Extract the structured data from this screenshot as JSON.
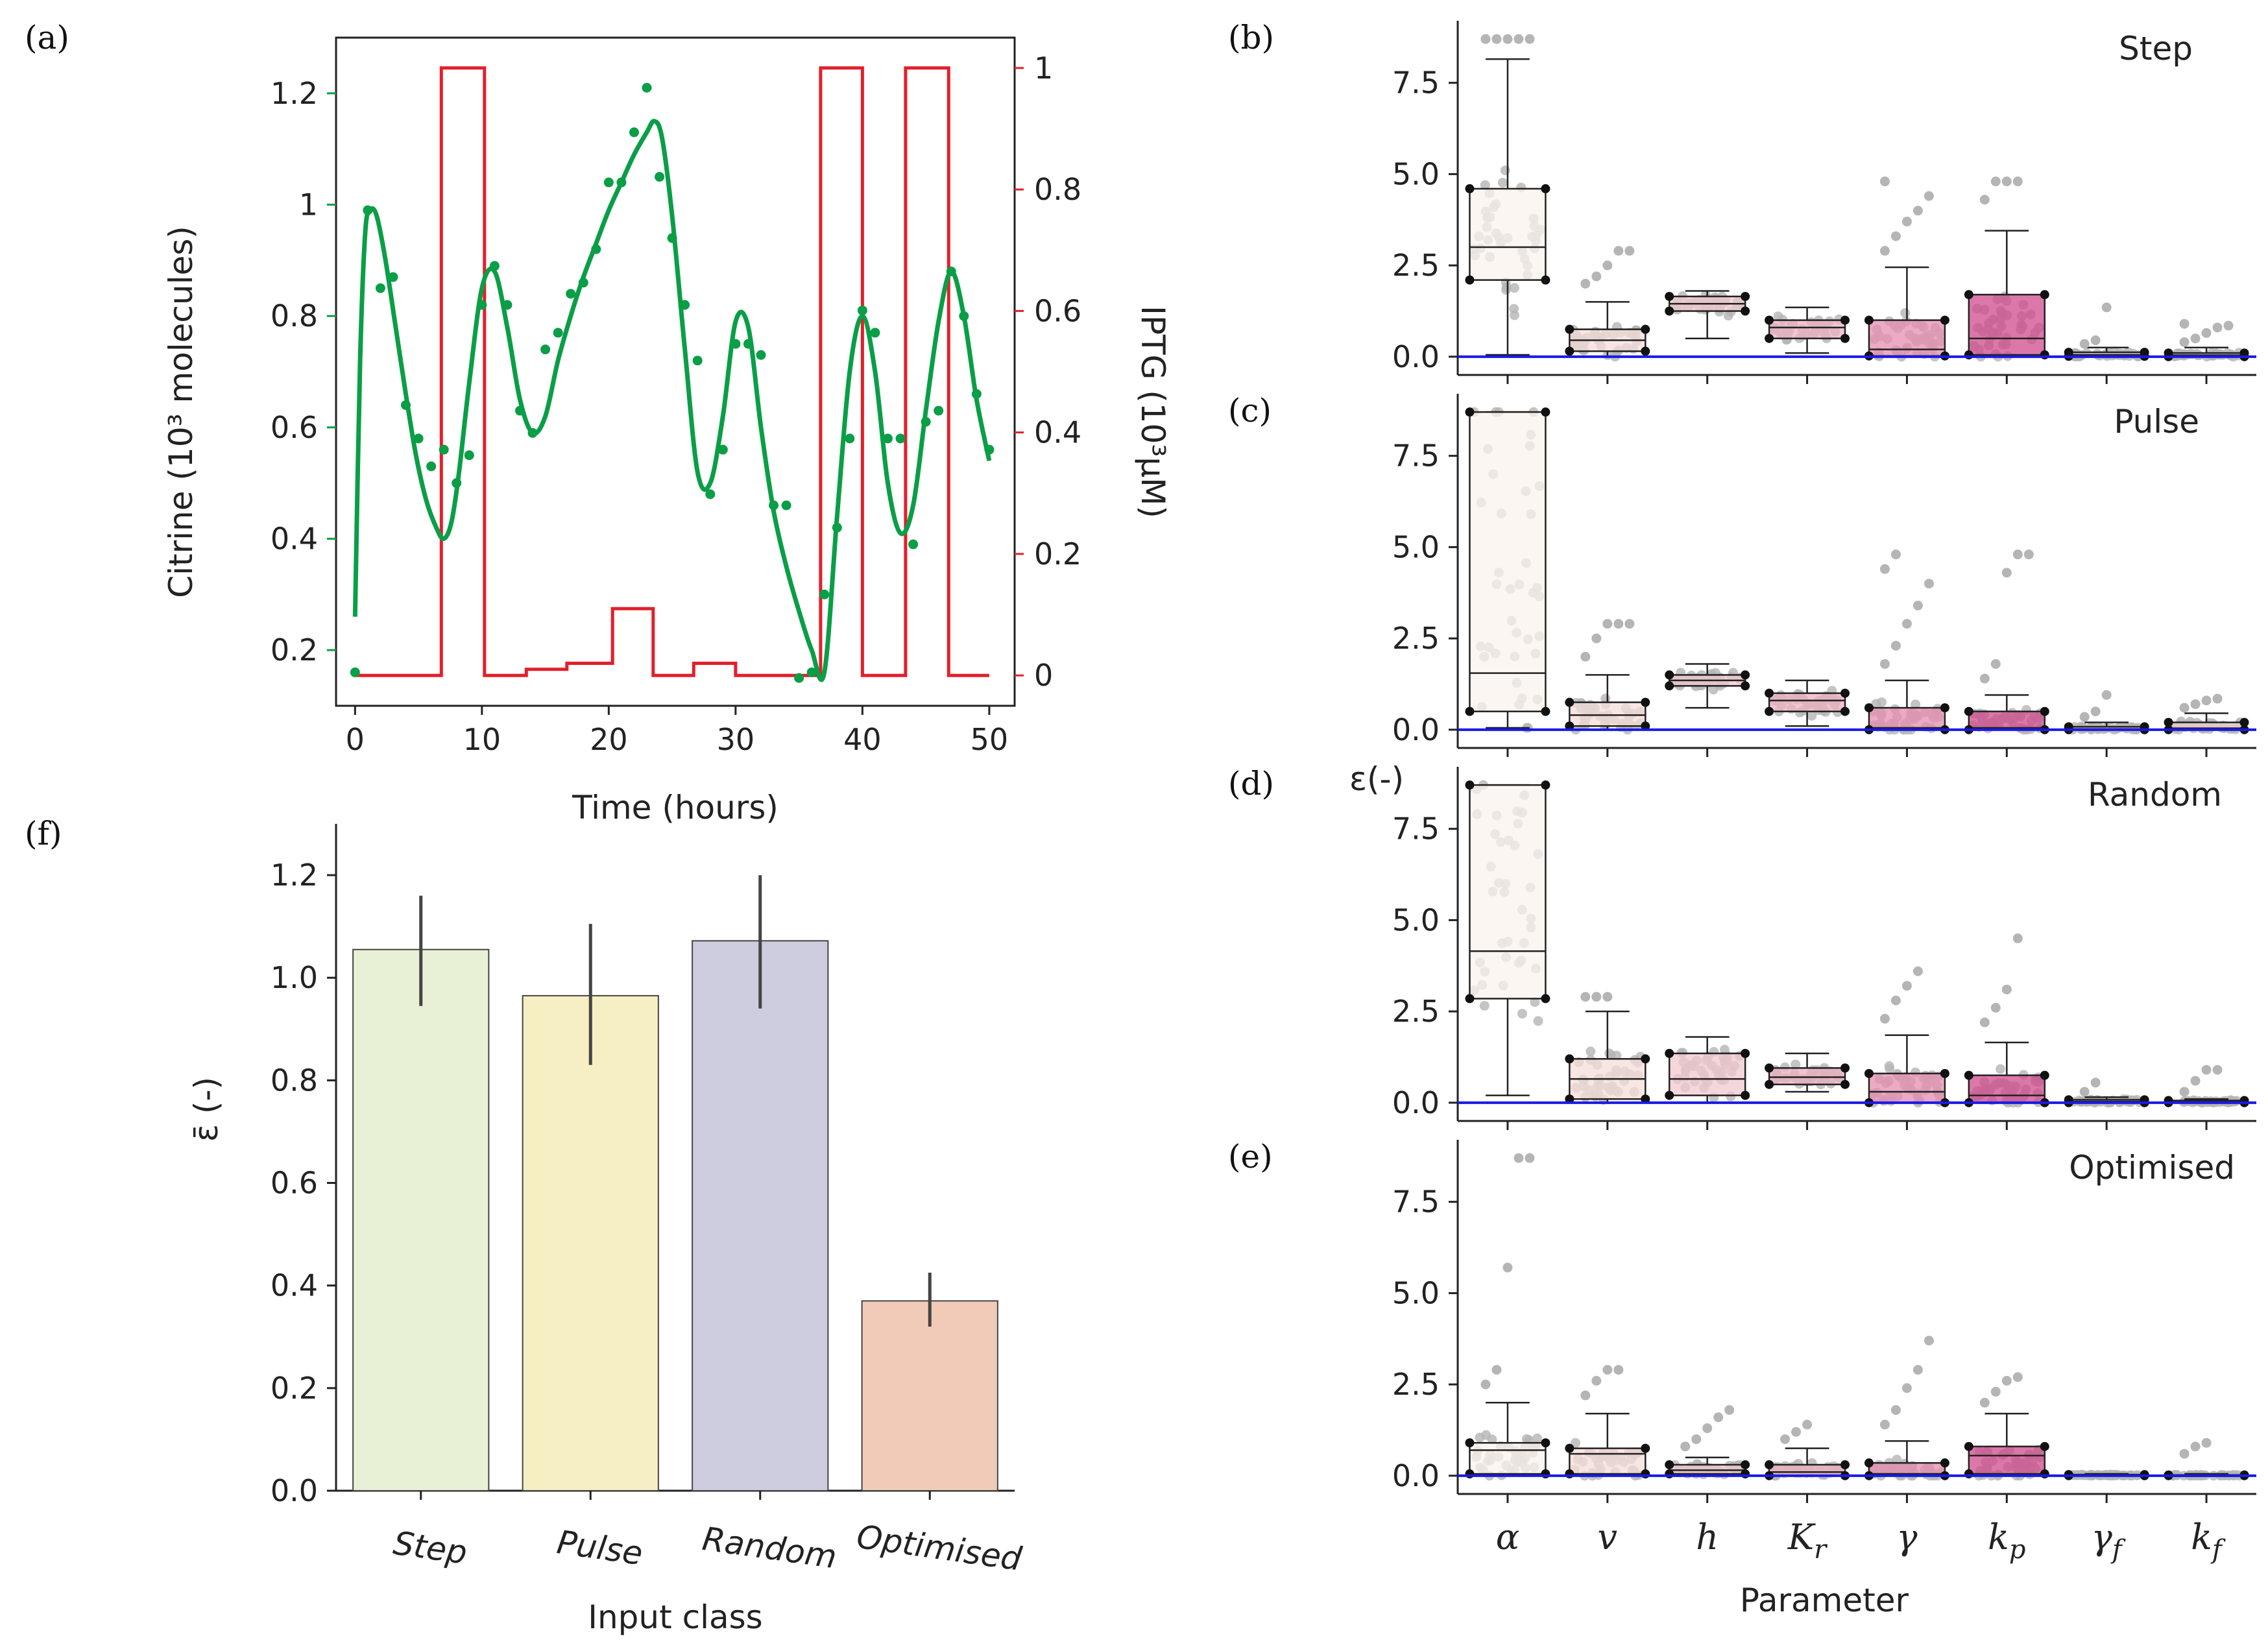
{
  "panel_letters": {
    "a": "(a)",
    "b": "(b)",
    "c": "(c)",
    "d": "(d)",
    "e": "(e)",
    "f": "(f)"
  },
  "colors": {
    "green": "#0a9e47",
    "red": "#e2202a",
    "blue": "#1a1ae6",
    "points": "#b5b5b5",
    "bar_step": "#e8f1d6",
    "bar_pulse": "#f6efc3",
    "bar_random": "#cdcddf",
    "bar_optimised": "#f2cbb8",
    "box_fills": [
      "#fbf3ee",
      "#f6ddd9",
      "#f2c9cf",
      "#eeb3c2",
      "#e68eb0",
      "#cf4a8c",
      "#f4d8e0",
      "#f1cdd8"
    ]
  },
  "chart_data": [
    {
      "id": "a",
      "type": "line",
      "xlabel": "Time (hours)",
      "ylabel": "Citrine (10³ molecules)",
      "y2label": "IPTG (10³μM)",
      "xlim": [
        -1.5,
        52
      ],
      "ylim": [
        0.1,
        1.3
      ],
      "y2lim": [
        -0.05,
        1.05
      ],
      "xticks": [
        0,
        10,
        20,
        30,
        40,
        50
      ],
      "xtick_labels": [
        "0",
        "10",
        "20",
        "30",
        "40",
        "50"
      ],
      "yticks": [
        0.2,
        0.4,
        0.6,
        0.8,
        1.0,
        1.2
      ],
      "ytick_labels": [
        "0.2",
        "0.4",
        "0.6",
        "0.8",
        "1",
        "1.2"
      ],
      "y2ticks": [
        0,
        0.2,
        0.4,
        0.6,
        0.8,
        1.0
      ],
      "y2tick_labels": [
        "0",
        "0.2",
        "0.4",
        "0.6",
        "0.8",
        "1"
      ],
      "model_fit": {
        "x": [
          0,
          0.4,
          0.8,
          1.2,
          1.7,
          2.4,
          3.2,
          4.0,
          4.8,
          5.6,
          6.4,
          7.0,
          7.6,
          8.2,
          9.0,
          10.0,
          11.0,
          12.0,
          13.0,
          14.0,
          15.0,
          16.0,
          17.0,
          18.0,
          19.0,
          20.0,
          21.0,
          22.0,
          23.0,
          23.6,
          24.2,
          25.0,
          26.0,
          27.0,
          28.0,
          29.0,
          30.0,
          31.0,
          32.0,
          33.0,
          34.0,
          35.0,
          36.0,
          37.0,
          38.0,
          39.0,
          40.0,
          41.0,
          42.0,
          43.0,
          44.0,
          45.0,
          46.0,
          47.0,
          48.0,
          49.0,
          50.0
        ],
        "y": [
          0.26,
          0.72,
          0.95,
          0.99,
          0.98,
          0.9,
          0.78,
          0.66,
          0.55,
          0.47,
          0.42,
          0.4,
          0.43,
          0.52,
          0.68,
          0.85,
          0.88,
          0.78,
          0.65,
          0.59,
          0.62,
          0.72,
          0.8,
          0.87,
          0.93,
          0.99,
          1.04,
          1.09,
          1.13,
          1.15,
          1.12,
          0.98,
          0.74,
          0.52,
          0.5,
          0.62,
          0.79,
          0.78,
          0.6,
          0.45,
          0.35,
          0.27,
          0.2,
          0.16,
          0.44,
          0.7,
          0.8,
          0.7,
          0.5,
          0.41,
          0.46,
          0.63,
          0.79,
          0.88,
          0.8,
          0.65,
          0.54
        ]
      },
      "measured": {
        "x": [
          0,
          1,
          2,
          3,
          4,
          5,
          6,
          7,
          8,
          9,
          10,
          11,
          12,
          13,
          14,
          15,
          16,
          17,
          18,
          19,
          20,
          21,
          22,
          23,
          24,
          25,
          26,
          27,
          28,
          29,
          30,
          31,
          32,
          33,
          34,
          35,
          36,
          37,
          38,
          39,
          40,
          41,
          42,
          43,
          44,
          45,
          46,
          47,
          48,
          49,
          50
        ],
        "y": [
          0.16,
          0.99,
          0.85,
          0.87,
          0.64,
          0.58,
          0.53,
          0.56,
          0.5,
          0.55,
          0.82,
          0.89,
          0.82,
          0.63,
          0.59,
          0.74,
          0.77,
          0.84,
          0.86,
          0.92,
          1.04,
          1.04,
          1.13,
          1.21,
          1.05,
          0.94,
          0.82,
          0.72,
          0.48,
          0.56,
          0.75,
          0.75,
          0.73,
          0.46,
          0.46,
          0.15,
          0.16,
          0.3,
          0.42,
          0.58,
          0.81,
          0.77,
          0.58,
          0.58,
          0.39,
          0.61,
          0.63,
          0.88,
          0.8,
          0.66,
          0.56
        ]
      },
      "iptg": {
        "x": [
          0,
          6.8,
          6.8,
          10.2,
          10.2,
          13.5,
          13.5,
          16.7,
          16.7,
          20.3,
          20.3,
          23.5,
          23.5,
          26.7,
          26.7,
          30,
          30,
          36.7,
          36.7,
          40,
          40,
          43.4,
          43.4,
          46.8,
          46.8,
          50
        ],
        "y": [
          0,
          0,
          1,
          1,
          0,
          0,
          0.01,
          0.01,
          0.02,
          0.02,
          0.11,
          0.11,
          0,
          0,
          0.02,
          0.02,
          0,
          0,
          1,
          1,
          0,
          0,
          1,
          1,
          0,
          0
        ]
      }
    },
    {
      "id": "box_panels",
      "type": "box",
      "categories": [
        "α",
        "v",
        "h",
        "Kr",
        "γ",
        "kp",
        "γf",
        "kf"
      ],
      "category_labels": [
        {
          "base": "α",
          "sub": ""
        },
        {
          "base": "v",
          "sub": ""
        },
        {
          "base": "h",
          "sub": ""
        },
        {
          "base": "K",
          "sub": "r"
        },
        {
          "base": "γ",
          "sub": ""
        },
        {
          "base": "k",
          "sub": "p"
        },
        {
          "base": "γ",
          "sub": "f"
        },
        {
          "base": "k",
          "sub": "f"
        }
      ],
      "xlabel": "Parameter",
      "ylabel": "ε(-)",
      "ylim": [
        -0.5,
        9.2
      ],
      "yticks": [
        0,
        2.5,
        5.0,
        7.5
      ],
      "ytick_labels": [
        "0.0",
        "2.5",
        "5.0",
        "7.5"
      ],
      "reference_line": 0,
      "panels": [
        {
          "id": "b",
          "title": "Step",
          "boxes": [
            {
              "wlo": 0.05,
              "q1": 2.1,
              "med": 3.0,
              "q3": 4.6,
              "whi": 8.15,
              "fliers": [
                8.7,
                8.7,
                8.7,
                8.7,
                8.7,
                8.7
              ]
            },
            {
              "wlo": 0.0,
              "q1": 0.15,
              "med": 0.45,
              "q3": 0.75,
              "whi": 1.5,
              "fliers": [
                2.0,
                2.2,
                2.5,
                2.9,
                2.9
              ]
            },
            {
              "wlo": 0.5,
              "q1": 1.25,
              "med": 1.45,
              "q3": 1.65,
              "whi": 1.8,
              "fliers": []
            },
            {
              "wlo": 0.1,
              "q1": 0.5,
              "med": 0.8,
              "q3": 1.0,
              "whi": 1.35,
              "fliers": []
            },
            {
              "wlo": 0.0,
              "q1": 0.02,
              "med": 0.2,
              "q3": 1.0,
              "whi": 2.45,
              "fliers": [
                2.9,
                3.3,
                3.7,
                4.0,
                4.4,
                4.8
              ]
            },
            {
              "wlo": 0.0,
              "q1": 0.05,
              "med": 0.5,
              "q3": 1.7,
              "whi": 3.45,
              "fliers": [
                4.3,
                4.8,
                4.8,
                4.8
              ]
            },
            {
              "wlo": 0.0,
              "q1": 0.01,
              "med": 0.05,
              "q3": 0.12,
              "whi": 0.25,
              "fliers": [
                0.35,
                0.45,
                1.35
              ]
            },
            {
              "wlo": 0.0,
              "q1": 0.0,
              "med": 0.04,
              "q3": 0.1,
              "whi": 0.25,
              "fliers": [
                0.4,
                0.5,
                0.65,
                0.8,
                0.85,
                0.9
              ]
            }
          ]
        },
        {
          "id": "c",
          "title": "Pulse",
          "boxes": [
            {
              "wlo": 0.05,
              "q1": 0.5,
              "med": 1.55,
              "q3": 8.7,
              "whi": 8.7,
              "fliers": []
            },
            {
              "wlo": 0.0,
              "q1": 0.1,
              "med": 0.4,
              "q3": 0.75,
              "whi": 1.5,
              "fliers": [
                2.0,
                2.5,
                2.9,
                2.9,
                2.9
              ]
            },
            {
              "wlo": 0.6,
              "q1": 1.2,
              "med": 1.35,
              "q3": 1.5,
              "whi": 1.8,
              "fliers": []
            },
            {
              "wlo": 0.1,
              "q1": 0.5,
              "med": 0.8,
              "q3": 1.0,
              "whi": 1.35,
              "fliers": []
            },
            {
              "wlo": 0.0,
              "q1": 0.0,
              "med": 0.05,
              "q3": 0.6,
              "whi": 1.35,
              "fliers": [
                1.8,
                2.3,
                2.9,
                3.4,
                4.0,
                4.4,
                4.8
              ]
            },
            {
              "wlo": 0.0,
              "q1": 0.0,
              "med": 0.05,
              "q3": 0.5,
              "whi": 0.95,
              "fliers": [
                1.4,
                1.8,
                4.3,
                4.8,
                4.8
              ]
            },
            {
              "wlo": 0.0,
              "q1": 0.0,
              "med": 0.02,
              "q3": 0.08,
              "whi": 0.2,
              "fliers": [
                0.35,
                0.5,
                0.95
              ]
            },
            {
              "wlo": 0.0,
              "q1": 0.0,
              "med": 0.04,
              "q3": 0.2,
              "whi": 0.45,
              "fliers": [
                0.6,
                0.7,
                0.8,
                0.85
              ]
            }
          ]
        },
        {
          "id": "d",
          "title": "Random",
          "boxes": [
            {
              "wlo": 0.2,
              "q1": 2.85,
              "med": 4.15,
              "q3": 8.7,
              "whi": 8.7,
              "fliers": []
            },
            {
              "wlo": 0.0,
              "q1": 0.1,
              "med": 0.65,
              "q3": 1.2,
              "whi": 2.5,
              "fliers": [
                2.9,
                2.9,
                2.9
              ]
            },
            {
              "wlo": 0.0,
              "q1": 0.2,
              "med": 0.65,
              "q3": 1.35,
              "whi": 1.8,
              "fliers": []
            },
            {
              "wlo": 0.3,
              "q1": 0.5,
              "med": 0.7,
              "q3": 0.95,
              "whi": 1.35,
              "fliers": []
            },
            {
              "wlo": 0.0,
              "q1": 0.0,
              "med": 0.3,
              "q3": 0.8,
              "whi": 1.85,
              "fliers": [
                2.3,
                2.8,
                3.2,
                3.6
              ]
            },
            {
              "wlo": 0.0,
              "q1": 0.0,
              "med": 0.2,
              "q3": 0.75,
              "whi": 1.65,
              "fliers": [
                2.2,
                2.6,
                3.1,
                4.5
              ]
            },
            {
              "wlo": 0.0,
              "q1": 0.0,
              "med": 0.03,
              "q3": 0.08,
              "whi": 0.15,
              "fliers": [
                0.3,
                0.55
              ]
            },
            {
              "wlo": 0.0,
              "q1": 0.0,
              "med": 0.02,
              "q3": 0.06,
              "whi": 0.1,
              "fliers": [
                0.3,
                0.6,
                0.9,
                0.9
              ]
            }
          ]
        },
        {
          "id": "e",
          "title": "Optimised",
          "boxes": [
            {
              "wlo": 0.0,
              "q1": 0.05,
              "med": 0.7,
              "q3": 0.9,
              "whi": 2.0,
              "fliers": [
                2.5,
                2.9,
                5.7,
                8.7,
                8.7
              ]
            },
            {
              "wlo": 0.0,
              "q1": 0.05,
              "med": 0.6,
              "q3": 0.75,
              "whi": 1.7,
              "fliers": [
                2.2,
                2.6,
                2.9,
                2.9
              ]
            },
            {
              "wlo": 0.0,
              "q1": 0.05,
              "med": 0.15,
              "q3": 0.3,
              "whi": 0.5,
              "fliers": [
                0.8,
                1.0,
                1.3,
                1.6,
                1.8
              ]
            },
            {
              "wlo": 0.0,
              "q1": 0.0,
              "med": 0.1,
              "q3": 0.3,
              "whi": 0.75,
              "fliers": [
                1.0,
                1.2,
                1.4
              ]
            },
            {
              "wlo": 0.0,
              "q1": 0.0,
              "med": 0.05,
              "q3": 0.35,
              "whi": 0.95,
              "fliers": [
                1.4,
                1.8,
                2.4,
                2.9,
                3.7
              ]
            },
            {
              "wlo": 0.0,
              "q1": 0.05,
              "med": 0.55,
              "q3": 0.8,
              "whi": 1.7,
              "fliers": [
                2.0,
                2.3,
                2.6,
                2.7
              ]
            },
            {
              "wlo": 0.0,
              "q1": 0.0,
              "med": 0.01,
              "q3": 0.03,
              "whi": 0.05,
              "fliers": []
            },
            {
              "wlo": 0.0,
              "q1": 0.0,
              "med": 0.01,
              "q3": 0.02,
              "whi": 0.05,
              "fliers": [
                0.6,
                0.8,
                0.9
              ]
            }
          ]
        }
      ]
    },
    {
      "id": "f",
      "type": "bar",
      "categories": [
        "Step",
        "Pulse",
        "Random",
        "Optimised"
      ],
      "values": [
        1.055,
        0.965,
        1.072,
        0.37
      ],
      "errors_low": [
        0.945,
        0.83,
        0.94,
        0.32
      ],
      "errors_high": [
        1.16,
        1.105,
        1.2,
        0.425
      ],
      "xlabel": "Input class",
      "ylabel": "ε̄ (-)",
      "ylim": [
        0,
        1.3
      ],
      "yticks": [
        0,
        0.2,
        0.4,
        0.6,
        0.8,
        1.0,
        1.2
      ],
      "ytick_labels": [
        "0.0",
        "0.2",
        "0.4",
        "0.6",
        "0.8",
        "1.0",
        "1.2"
      ]
    }
  ]
}
